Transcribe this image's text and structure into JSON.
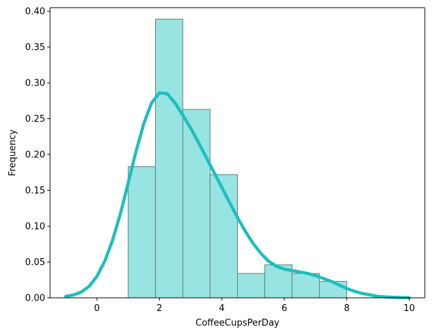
{
  "chart_data": {
    "type": "bar",
    "title": "",
    "xlabel": "CoffeeCupsPerDay",
    "ylabel": "Frequency",
    "xlim": [
      -1.5,
      10.5
    ],
    "ylim": [
      0,
      0.405
    ],
    "x_ticks": [
      0,
      2,
      4,
      6,
      8,
      10
    ],
    "x_tick_labels": [
      "0",
      "2",
      "4",
      "6",
      "8",
      "10"
    ],
    "y_ticks": [
      0.0,
      0.05,
      0.1,
      0.15,
      0.2,
      0.25,
      0.3,
      0.35,
      0.4
    ],
    "y_tick_labels": [
      "0.00",
      "0.05",
      "0.10",
      "0.15",
      "0.20",
      "0.25",
      "0.30",
      "0.35",
      "0.40"
    ],
    "grid": false,
    "histogram": {
      "bin_edges": [
        1.0,
        1.875,
        2.75,
        3.625,
        4.5,
        5.375,
        6.25,
        7.125,
        8.0
      ],
      "values": [
        0.183,
        0.389,
        0.263,
        0.172,
        0.034,
        0.046,
        0.034,
        0.023
      ],
      "fill_color": "#98e4e2",
      "edge_color": "#5f7f7d"
    },
    "density_curve": {
      "color": "#1cbfbd",
      "x": [
        -1.0,
        -0.75,
        -0.5,
        -0.25,
        0.0,
        0.25,
        0.5,
        0.75,
        1.0,
        1.25,
        1.5,
        1.75,
        2.0,
        2.25,
        2.5,
        2.75,
        3.0,
        3.25,
        3.5,
        3.75,
        4.0,
        4.25,
        4.5,
        4.75,
        5.0,
        5.25,
        5.5,
        5.75,
        6.0,
        6.25,
        6.5,
        6.75,
        7.0,
        7.25,
        7.5,
        7.75,
        8.0,
        8.25,
        8.5,
        8.75,
        9.0,
        9.25,
        9.5,
        9.75,
        10.0
      ],
      "y": [
        0.002,
        0.004,
        0.008,
        0.016,
        0.03,
        0.051,
        0.08,
        0.117,
        0.16,
        0.204,
        0.243,
        0.272,
        0.286,
        0.285,
        0.272,
        0.255,
        0.237,
        0.217,
        0.196,
        0.175,
        0.154,
        0.133,
        0.112,
        0.093,
        0.076,
        0.062,
        0.051,
        0.044,
        0.04,
        0.038,
        0.036,
        0.034,
        0.031,
        0.027,
        0.023,
        0.018,
        0.013,
        0.009,
        0.006,
        0.004,
        0.002,
        0.0012,
        0.0007,
        0.0004,
        0.0002
      ]
    }
  }
}
